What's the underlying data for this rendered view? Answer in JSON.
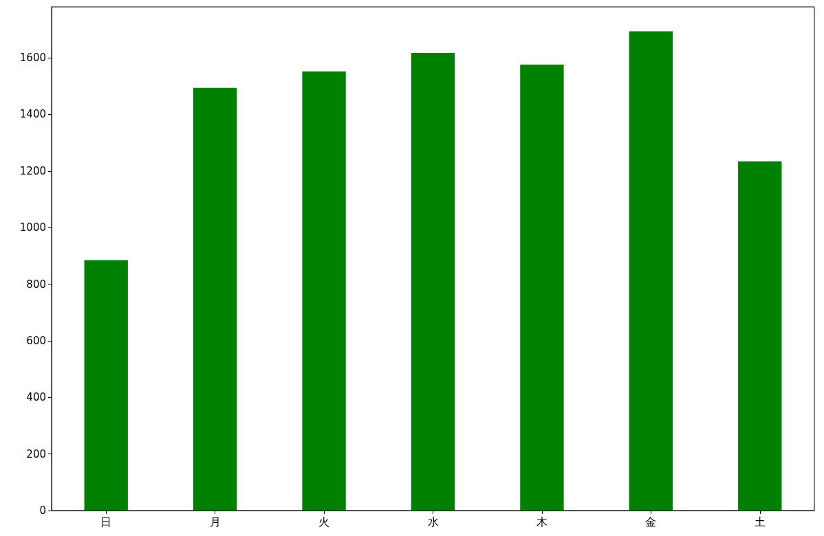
{
  "chart_data": {
    "type": "bar",
    "categories": [
      "日",
      "月",
      "火",
      "水",
      "木",
      "金",
      "土"
    ],
    "values": [
      885,
      1494,
      1552,
      1617,
      1576,
      1694,
      1234
    ],
    "color": "#008000",
    "ylim": [
      0,
      1780
    ],
    "yticks": [
      0,
      200,
      400,
      600,
      800,
      1000,
      1200,
      1400,
      1600
    ],
    "grid": false
  }
}
